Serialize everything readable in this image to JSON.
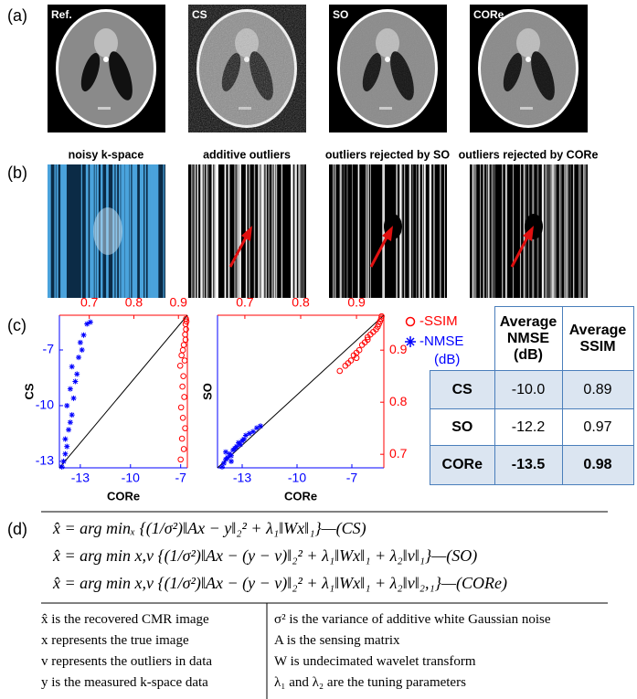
{
  "panel_labels": [
    "(a)",
    "(b)",
    "(c)",
    "(d)"
  ],
  "images": [
    "Ref.",
    "CS",
    "SO",
    "CORe"
  ],
  "kspace_titles": [
    "noisy k-space",
    "additive outliers",
    "outliers rejected by SO",
    "outliers rejected by CORe"
  ],
  "chart_data": [
    {
      "type": "scatter",
      "xlabel": "CORe",
      "ylabel": "CS",
      "xlim": [
        -14.25,
        -6.6
      ],
      "xticks": [
        -13,
        -10,
        -7
      ],
      "ylim": [
        -13.35,
        -5.13
      ],
      "yticks": [
        -7,
        -10,
        -13
      ],
      "x2lim": [
        0.633,
        0.92
      ],
      "x2ticks": [
        0.7,
        0.8,
        0.9
      ],
      "y2lim": [
        0.674,
        0.967
      ],
      "series": [
        {
          "name": "-NMSE (dB)",
          "color": "#0000ff",
          "marker": "*",
          "x": [
            -14.1,
            -14.0,
            -13.9,
            -13.8,
            -13.9,
            -13.7,
            -13.6,
            -13.5,
            -13.8,
            -13.4,
            -13.6,
            -13.3,
            -13.2,
            -13.5,
            -13.1,
            -12.9,
            -13.0,
            -12.8,
            -12.6,
            -12.4
          ],
          "values": [
            -13.3,
            -13.0,
            -12.6,
            -12.2,
            -11.8,
            -11.3,
            -10.9,
            -10.5,
            -10.0,
            -9.6,
            -9.1,
            -8.7,
            -8.3,
            -7.9,
            -7.4,
            -7.0,
            -6.6,
            -6.2,
            -5.6,
            -5.5
          ]
        },
        {
          "name": "-SSIM",
          "color": "#ff0000",
          "marker": "o",
          "axis": "y2",
          "x": [
            0.905,
            0.912,
            0.908,
            0.915,
            0.91,
            0.906,
            0.913,
            0.909,
            0.911,
            0.904,
            0.914,
            0.907,
            0.91,
            0.912,
            0.916,
            0.915,
            0.917,
            0.916,
            0.918,
            0.917
          ],
          "values": [
            0.69,
            0.71,
            0.73,
            0.75,
            0.77,
            0.79,
            0.81,
            0.83,
            0.85,
            0.87,
            0.88,
            0.89,
            0.9,
            0.91,
            0.92,
            0.93,
            0.94,
            0.95,
            0.955,
            0.96
          ]
        }
      ]
    },
    {
      "type": "scatter",
      "xlabel": "CORe",
      "ylabel": "SO",
      "xlim": [
        -14.35,
        -5.25
      ],
      "xticks": [
        -13,
        -10,
        -7
      ],
      "ylim": [
        -13.35,
        -5.13
      ],
      "x2lim": [
        0.651,
        0.949
      ],
      "x2ticks": [
        0.7,
        0.8,
        0.9
      ],
      "y2lim": [
        0.674,
        0.967
      ],
      "y2ticks": [
        0.9,
        0.8,
        0.7
      ],
      "series": [
        {
          "color": "#0000ff",
          "marker": "*",
          "x": [
            -14.1,
            -14.0,
            -13.9,
            -13.8,
            -13.7,
            -13.6,
            -13.5,
            -13.4,
            -13.3,
            -13.2,
            -13.1,
            -13.0,
            -12.9,
            -12.8,
            -12.6,
            -12.4,
            -12.2,
            -12.0,
            -13.6,
            -13.9
          ],
          "values": [
            -13.3,
            -13.1,
            -12.9,
            -12.8,
            -12.6,
            -12.7,
            -12.4,
            -12.3,
            -12.2,
            -12.0,
            -12.1,
            -11.9,
            -11.8,
            -11.6,
            -11.5,
            -11.4,
            -11.2,
            -11.1,
            -13.0,
            -12.5
          ]
        },
        {
          "color": "#ff0000",
          "marker": "o",
          "axis": "y2",
          "x": [
            0.87,
            0.88,
            0.885,
            0.89,
            0.895,
            0.9,
            0.905,
            0.91,
            0.915,
            0.92,
            0.925,
            0.93,
            0.935,
            0.938,
            0.94,
            0.942,
            0.944,
            0.945,
            0.9,
            0.92
          ],
          "values": [
            0.86,
            0.87,
            0.875,
            0.88,
            0.89,
            0.895,
            0.9,
            0.91,
            0.915,
            0.92,
            0.93,
            0.935,
            0.94,
            0.945,
            0.95,
            0.955,
            0.96,
            0.965,
            0.885,
            0.925
          ]
        }
      ]
    }
  ],
  "table": {
    "header": [
      "Average NMSE (dB)",
      "Average SSIM"
    ],
    "rows": [
      [
        "CS",
        "-10.0",
        "0.89"
      ],
      [
        "SO",
        "-12.2",
        "0.97"
      ],
      [
        "CORe",
        "-13.5",
        "0.98"
      ]
    ]
  },
  "equations": [
    "x̂ = arg minₓ {(1/σ²)‖Ax − y‖₂² + λ₁‖Wx‖₁}—(CS)",
    "x̂ = arg min x,v {(1/σ²)‖Ax − (y − v)‖₂² + λ₁‖Wx‖₁ + λ₂‖v‖₁}—(SO)",
    "x̂ = arg min x,v {(1/σ²)‖Ax − (y − v)‖₂² + λ₁‖Wx‖₁ + λ₂‖v‖₂,₁}—(CORe)"
  ],
  "definitions": [
    [
      "x̂ is the recovered CMR image",
      "σ² is the variance of additive white Gaussian noise"
    ],
    [
      "x represents the true image",
      "A is the sensing matrix"
    ],
    [
      "v represents the outliers in data",
      "W is undecimated wavelet transform"
    ],
    [
      "y is the measured k-space data",
      "λ₁ and λ₂ are the tuning parameters"
    ]
  ]
}
